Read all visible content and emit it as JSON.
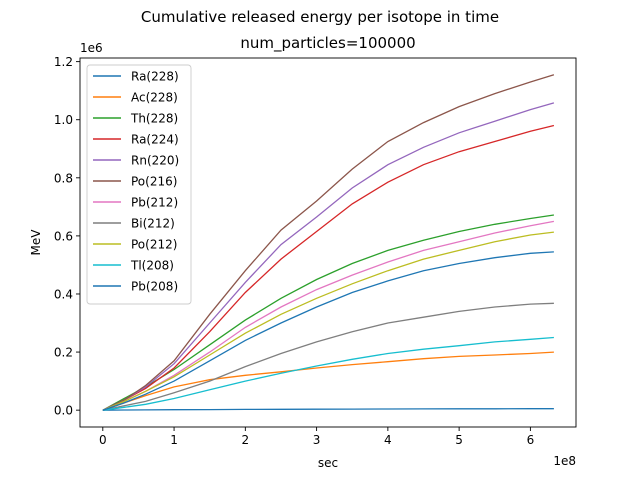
{
  "figure": {
    "suptitle": "Cumulative released energy per isotope in time",
    "title": "num_particles=100000"
  },
  "chart_data": {
    "type": "line",
    "title": "num_particles=100000",
    "suptitle": "Cumulative released energy per isotope in time",
    "xlabel": "sec",
    "ylabel": "MeV",
    "x_offset_text": "1e8",
    "y_offset_text": "1e6",
    "xlim": [
      -0.32,
      6.64
    ],
    "ylim": [
      -0.058,
      1.2125
    ],
    "x_ticks": [
      0,
      1,
      2,
      3,
      4,
      5,
      6
    ],
    "x_tick_labels": [
      "0",
      "1",
      "2",
      "3",
      "4",
      "5",
      "6"
    ],
    "y_ticks": [
      0.0,
      0.2,
      0.4,
      0.6,
      0.8,
      1.0,
      1.2
    ],
    "y_tick_labels": [
      "0.0",
      "0.2",
      "0.4",
      "0.6",
      "0.8",
      "1.0",
      "1.2"
    ],
    "grid": false,
    "legend_position": "upper-left",
    "x": [
      0,
      0.3,
      0.6,
      1.0,
      1.5,
      2.0,
      2.5,
      3.0,
      3.5,
      4.0,
      4.5,
      5.0,
      5.5,
      6.0,
      6.33
    ],
    "series": [
      {
        "name": "Ra(228)",
        "color": "#1f77b4",
        "values": [
          0,
          0.0005,
          0.001,
          0.0015,
          0.002,
          0.0025,
          0.003,
          0.0033,
          0.0036,
          0.004,
          0.0042,
          0.0045,
          0.0048,
          0.005,
          0.005
        ]
      },
      {
        "name": "Ac(228)",
        "color": "#ff7f0e",
        "values": [
          0,
          0.025,
          0.05,
          0.08,
          0.105,
          0.12,
          0.132,
          0.145,
          0.157,
          0.167,
          0.177,
          0.185,
          0.19,
          0.195,
          0.2
        ]
      },
      {
        "name": "Th(228)",
        "color": "#2ca02c",
        "values": [
          0,
          0.04,
          0.08,
          0.14,
          0.225,
          0.31,
          0.385,
          0.45,
          0.505,
          0.55,
          0.585,
          0.615,
          0.64,
          0.66,
          0.672
        ]
      },
      {
        "name": "Ra(224)",
        "color": "#d62728",
        "values": [
          0,
          0.035,
          0.075,
          0.145,
          0.27,
          0.405,
          0.52,
          0.615,
          0.71,
          0.785,
          0.845,
          0.89,
          0.925,
          0.96,
          0.98
        ]
      },
      {
        "name": "Rn(220)",
        "color": "#9467bd",
        "values": [
          0,
          0.035,
          0.08,
          0.16,
          0.3,
          0.44,
          0.57,
          0.665,
          0.765,
          0.845,
          0.905,
          0.955,
          0.995,
          1.035,
          1.058
        ]
      },
      {
        "name": "Po(216)",
        "color": "#8c564b",
        "values": [
          0,
          0.035,
          0.085,
          0.17,
          0.33,
          0.48,
          0.62,
          0.72,
          0.83,
          0.925,
          0.99,
          1.045,
          1.09,
          1.13,
          1.155
        ]
      },
      {
        "name": "Pb(212)",
        "color": "#e377c2",
        "values": [
          0,
          0.03,
          0.065,
          0.12,
          0.2,
          0.285,
          0.355,
          0.415,
          0.465,
          0.51,
          0.55,
          0.58,
          0.61,
          0.635,
          0.65
        ]
      },
      {
        "name": "Bi(212)",
        "color": "#7f7f7f",
        "values": [
          0,
          0.015,
          0.03,
          0.06,
          0.1,
          0.15,
          0.195,
          0.235,
          0.27,
          0.3,
          0.32,
          0.34,
          0.355,
          0.365,
          0.368
        ]
      },
      {
        "name": "Po(212)",
        "color": "#bcbd22",
        "values": [
          0,
          0.03,
          0.065,
          0.115,
          0.19,
          0.265,
          0.33,
          0.385,
          0.435,
          0.48,
          0.52,
          0.55,
          0.58,
          0.603,
          0.613
        ]
      },
      {
        "name": "Tl(208)",
        "color": "#17becf",
        "values": [
          0,
          0.01,
          0.02,
          0.04,
          0.07,
          0.1,
          0.127,
          0.152,
          0.175,
          0.195,
          0.21,
          0.222,
          0.235,
          0.244,
          0.25
        ]
      },
      {
        "name": "Pb(208)",
        "color": "#1f77b4",
        "values": [
          0,
          0.025,
          0.055,
          0.1,
          0.17,
          0.24,
          0.3,
          0.355,
          0.405,
          0.445,
          0.48,
          0.505,
          0.525,
          0.54,
          0.545
        ]
      }
    ]
  }
}
